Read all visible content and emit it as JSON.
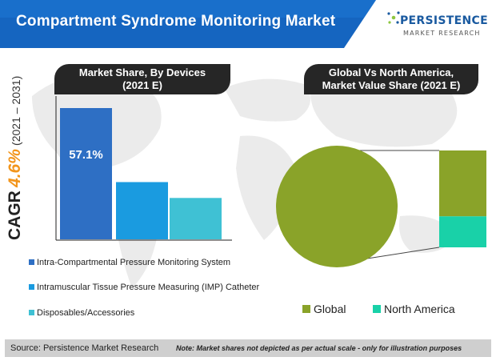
{
  "header": {
    "title": "Compartment Syndrome Monitoring Market"
  },
  "logo": {
    "name": "PERSISTENCE",
    "sub": "MARKET RESEARCH"
  },
  "cagr": {
    "word": "CAGR",
    "value": "4.6%",
    "years": "(2021 – 2031)"
  },
  "colors": {
    "header_blue": "#1565c0",
    "bar_1": "#2e6fc4",
    "bar_2": "#1a9be0",
    "bar_3": "#3fc1d4",
    "global": "#8aa329",
    "north_america": "#19d1a8",
    "pill": "#262626",
    "accent": "#f2951c"
  },
  "left_panel": {
    "title_line1": "Market Share, By Devices",
    "title_line2": "(2021 E)"
  },
  "right_panel": {
    "title_line1": "Global Vs North America,",
    "title_line2": "Market Value Share (2021 E)"
  },
  "chart_data": [
    {
      "type": "bar",
      "title": "Market Share, By Devices (2021 E)",
      "categories": [
        "Intra-Compartmental Pressure Monitoring System",
        "Intramuscular Tissue Pressure Measuring (IMP) Catheter",
        "Disposables/Accessories"
      ],
      "values": [
        57.1,
        24.9,
        18.0
      ],
      "data_labels": [
        "57.1%",
        "",
        ""
      ],
      "legend_position": "bottom",
      "grid": false
    },
    {
      "type": "pie",
      "title": "Global Vs North America, Market Value Share (2021 E)",
      "categories": [
        "Global",
        "North America"
      ],
      "values": [
        100,
        32
      ],
      "legend_position": "bottom",
      "note": "pie-of-pie: North America portion shown as share of global"
    }
  ],
  "footer": {
    "source": "Source: Persistence Market Research",
    "note": "Note: Market shares not depicted as per actual scale - only for illustration purposes"
  }
}
